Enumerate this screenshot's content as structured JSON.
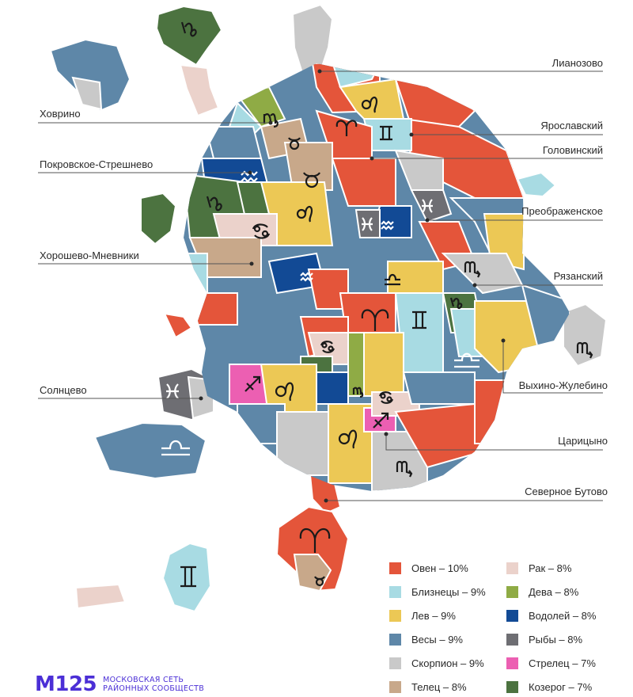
{
  "map": {
    "callouts": [
      {
        "id": "lianozovo",
        "label": "Лианозово"
      },
      {
        "id": "khovrino",
        "label": "Ховрино"
      },
      {
        "id": "yaroslavsky",
        "label": "Ярославский"
      },
      {
        "id": "golovinsky",
        "label": "Головинский"
      },
      {
        "id": "pokrovskoe",
        "label": "Покровское-Стрешнево"
      },
      {
        "id": "preobrazhenskoe",
        "label": "Преображенское"
      },
      {
        "id": "khoroshevo",
        "label": "Хорошево-Мневники"
      },
      {
        "id": "ryazansky",
        "label": "Рязанский"
      },
      {
        "id": "solntsevo",
        "label": "Солнцево"
      },
      {
        "id": "vykhino",
        "label": "Выхино-Жулебино"
      },
      {
        "id": "tsaritsyno",
        "label": "Царицыно"
      },
      {
        "id": "severnoe_butovo",
        "label": "Северное Бутово"
      }
    ]
  },
  "legend": {
    "items": [
      {
        "sign": "Овен",
        "label": "Овен – 10%",
        "percent": 10,
        "color": "#e4553a"
      },
      {
        "sign": "Близнецы",
        "label": "Близнецы – 9%",
        "percent": 9,
        "color": "#a8dbe3"
      },
      {
        "sign": "Лев",
        "label": "Лев – 9%",
        "percent": 9,
        "color": "#ecc855"
      },
      {
        "sign": "Весы",
        "label": "Весы – 9%",
        "percent": 9,
        "color": "#5e87a8"
      },
      {
        "sign": "Скорпион",
        "label": "Скорпион – 9%",
        "percent": 9,
        "color": "#c9c9c9"
      },
      {
        "sign": "Телец",
        "label": "Телец – 8%",
        "percent": 8,
        "color": "#c8a88a"
      },
      {
        "sign": "Рак",
        "label": "Рак – 8%",
        "percent": 8,
        "color": "#ebd2cb"
      },
      {
        "sign": "Дева",
        "label": "Дева – 8%",
        "percent": 8,
        "color": "#8fab45"
      },
      {
        "sign": "Водолей",
        "label": "Водолей – 8%",
        "percent": 8,
        "color": "#124a95"
      },
      {
        "sign": "Рыбы",
        "label": "Рыбы – 8%",
        "percent": 8,
        "color": "#6e6e73"
      },
      {
        "sign": "Стрелец",
        "label": "Стрелец – 7%",
        "percent": 7,
        "color": "#ec5fb2"
      },
      {
        "sign": "Козерог",
        "label": "Козерог – 7%",
        "percent": 7,
        "color": "#4c7340"
      }
    ]
  },
  "logo": {
    "mark": "М125",
    "line1": "МОСКОВСКАЯ СЕТЬ",
    "line2": "РАЙОННЫХ СООБЩЕСТВ",
    "color": "#4b2fd6"
  }
}
